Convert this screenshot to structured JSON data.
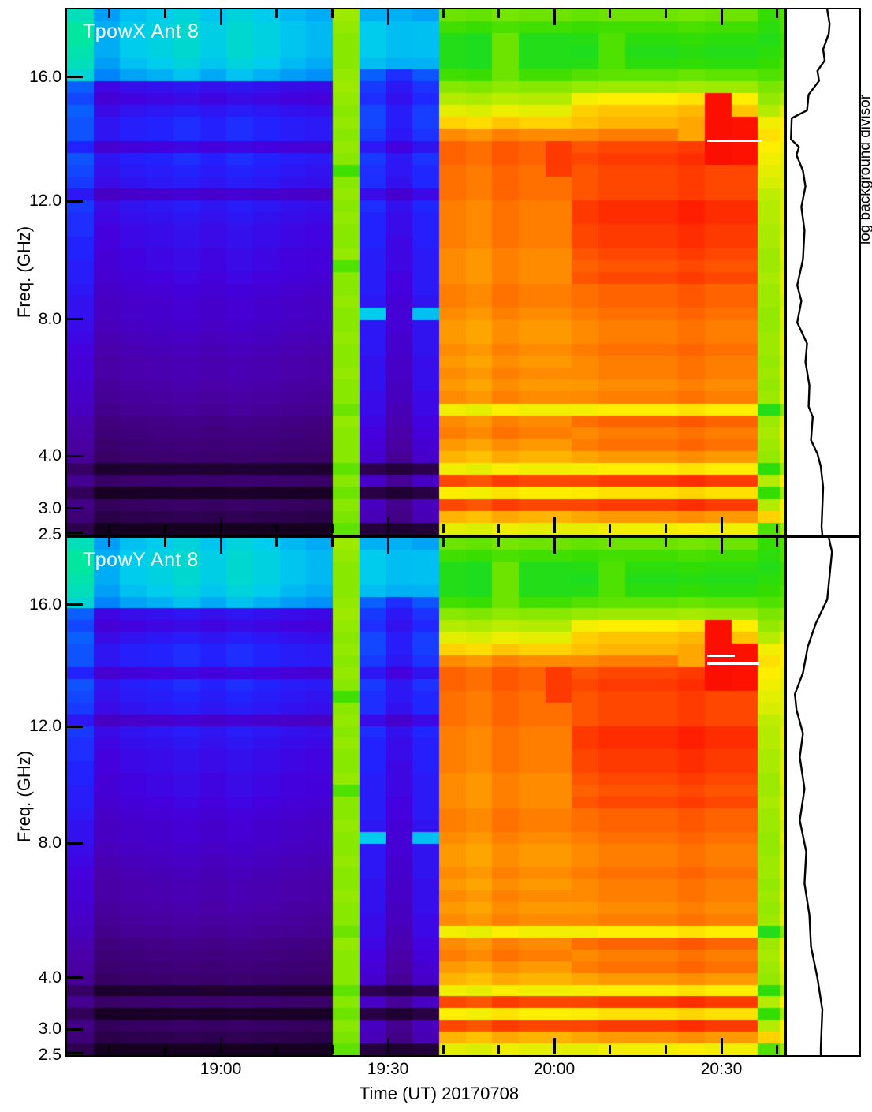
{
  "chart_data": {
    "type": "heatmap",
    "description": "Dynamic radio spectrogram, total power vs time and frequency, two polarizations, with background-divisor spectrum side panels",
    "shared": {
      "x_title": "Time (UT) 20170708",
      "x_start": "18:32",
      "x_end": "20:41",
      "x_axis": {
        "major": [
          {
            "label": "19:00",
            "f": 0.2143
          },
          {
            "label": "19:30",
            "f": 0.4473
          },
          {
            "label": "20:00",
            "f": 0.6791
          },
          {
            "label": "20:30",
            "f": 0.9121
          }
        ],
        "minor_f": [
          0.059,
          0.1363,
          0.2918,
          0.3692,
          0.5242,
          0.6017,
          0.7566,
          0.8341,
          0.9896
        ]
      },
      "y_title": "Freq. (GHz)",
      "y_axis": {
        "ticks": [
          {
            "label": "16.0",
            "f": 0.129
          },
          {
            "label": "12.0",
            "f": 0.365
          },
          {
            "label": "8.0",
            "f": 0.59
          },
          {
            "label": "4.0",
            "f": 0.85
          },
          {
            "label": "3.0",
            "f": 0.95
          },
          {
            "label": "2.5",
            "f": 1.0
          }
        ],
        "range_ghz": [
          2.5,
          18.0
        ]
      },
      "right_panel_label": "log background divisor",
      "colormap_stops": [
        [
          0.0,
          "#000000"
        ],
        [
          0.06,
          "#1a0028"
        ],
        [
          0.13,
          "#3c006e"
        ],
        [
          0.2,
          "#4a00a8"
        ],
        [
          0.27,
          "#4400dd"
        ],
        [
          0.33,
          "#2222ff"
        ],
        [
          0.4,
          "#0077ff"
        ],
        [
          0.46,
          "#00ccee"
        ],
        [
          0.52,
          "#00e8a0"
        ],
        [
          0.58,
          "#00dd44"
        ],
        [
          0.64,
          "#33dd00"
        ],
        [
          0.7,
          "#88e800"
        ],
        [
          0.76,
          "#c8ee00"
        ],
        [
          0.8,
          "#ffee00"
        ],
        [
          0.86,
          "#ff9900"
        ],
        [
          0.91,
          "#ff5500"
        ],
        [
          0.96,
          "#ff1100"
        ],
        [
          1.0,
          "#dd0000"
        ]
      ],
      "n_freq_rows": 44,
      "profiles": {
        "pre": [
          0.46,
          0.47,
          0.47,
          0.47,
          0.46,
          0.44,
          0.3,
          0.28,
          0.31,
          0.33,
          0.33,
          0.27,
          0.33,
          0.32,
          0.31,
          0.25,
          0.31,
          0.3,
          0.29,
          0.29,
          0.28,
          0.28,
          0.27,
          0.26,
          0.25,
          0.25,
          0.24,
          0.23,
          0.22,
          0.21,
          0.21,
          0.2,
          0.19,
          0.18,
          0.16,
          0.15,
          0.14,
          0.13,
          0.07,
          0.13,
          0.06,
          0.12,
          0.1,
          0.05
        ],
        "pre_bright": [
          0.5,
          0.52,
          0.52,
          0.51,
          0.5,
          0.48,
          0.38,
          0.36,
          0.38,
          0.37,
          0.37,
          0.33,
          0.37,
          0.36,
          0.35,
          0.31,
          0.35,
          0.34,
          0.34,
          0.33,
          0.33,
          0.32,
          0.32,
          0.31,
          0.3,
          0.3,
          0.29,
          0.28,
          0.27,
          0.26,
          0.26,
          0.25,
          0.24,
          0.23,
          0.21,
          0.2,
          0.19,
          0.18,
          0.12,
          0.17,
          0.11,
          0.16,
          0.14,
          0.1
        ],
        "cal": [
          0.72,
          0.71,
          0.7,
          0.7,
          0.7,
          0.71,
          0.72,
          0.71,
          0.7,
          0.71,
          0.7,
          0.71,
          0.7,
          0.65,
          0.7,
          0.71,
          0.7,
          0.71,
          0.7,
          0.7,
          0.71,
          0.66,
          0.7,
          0.7,
          0.71,
          0.7,
          0.7,
          0.71,
          0.7,
          0.7,
          0.71,
          0.7,
          0.7,
          0.68,
          0.71,
          0.7,
          0.7,
          0.7,
          0.67,
          0.7,
          0.68,
          0.7,
          0.69,
          0.67
        ],
        "blue": [
          0.44,
          0.46,
          0.46,
          0.46,
          0.45,
          0.38,
          0.35,
          0.34,
          0.36,
          0.36,
          0.35,
          0.31,
          0.35,
          0.34,
          0.34,
          0.29,
          0.34,
          0.33,
          0.33,
          0.33,
          0.32,
          0.32,
          0.32,
          0.32,
          0.31,
          0.46,
          0.31,
          0.31,
          0.31,
          0.3,
          0.3,
          0.3,
          0.29,
          0.29,
          0.28,
          0.27,
          0.26,
          0.25,
          0.1,
          0.24,
          0.09,
          0.23,
          0.22,
          0.08
        ],
        "dark": [
          0.44,
          0.45,
          0.45,
          0.45,
          0.44,
          0.34,
          0.31,
          0.3,
          0.32,
          0.32,
          0.31,
          0.27,
          0.31,
          0.31,
          0.3,
          0.25,
          0.3,
          0.29,
          0.29,
          0.28,
          0.28,
          0.28,
          0.27,
          0.27,
          0.26,
          0.26,
          0.26,
          0.25,
          0.25,
          0.24,
          0.24,
          0.23,
          0.23,
          0.22,
          0.21,
          0.2,
          0.19,
          0.18,
          0.08,
          0.18,
          0.07,
          0.17,
          0.16,
          0.07
        ],
        "flare": [
          0.68,
          0.65,
          0.62,
          0.62,
          0.62,
          0.65,
          0.7,
          0.74,
          0.78,
          0.82,
          0.87,
          0.9,
          0.9,
          0.89,
          0.89,
          0.89,
          0.88,
          0.88,
          0.88,
          0.88,
          0.87,
          0.87,
          0.87,
          0.88,
          0.88,
          0.87,
          0.86,
          0.86,
          0.87,
          0.86,
          0.87,
          0.86,
          0.87,
          0.79,
          0.87,
          0.88,
          0.86,
          0.84,
          0.79,
          0.92,
          0.8,
          0.92,
          0.84,
          0.78
        ],
        "flare_late": [
          0.68,
          0.65,
          0.63,
          0.62,
          0.63,
          0.67,
          0.72,
          0.8,
          0.83,
          0.84,
          0.88,
          0.92,
          0.93,
          0.92,
          0.92,
          0.92,
          0.94,
          0.94,
          0.93,
          0.93,
          0.92,
          0.91,
          0.92,
          0.9,
          0.9,
          0.89,
          0.88,
          0.88,
          0.89,
          0.88,
          0.88,
          0.87,
          0.88,
          0.8,
          0.9,
          0.88,
          0.89,
          0.86,
          0.8,
          0.93,
          0.81,
          0.93,
          0.86,
          0.79
        ],
        "edge": [
          0.64,
          0.63,
          0.62,
          0.63,
          0.64,
          0.66,
          0.69,
          0.71,
          0.74,
          0.79,
          0.81,
          0.8,
          0.79,
          0.78,
          0.77,
          0.75,
          0.74,
          0.74,
          0.73,
          0.73,
          0.72,
          0.72,
          0.73,
          0.72,
          0.72,
          0.71,
          0.71,
          0.72,
          0.72,
          0.71,
          0.72,
          0.71,
          0.72,
          0.62,
          0.72,
          0.73,
          0.72,
          0.71,
          0.63,
          0.74,
          0.64,
          0.74,
          0.82,
          0.66
        ],
        "sliver": [
          0.66,
          0.66,
          0.65,
          0.65,
          0.66,
          0.67,
          0.7,
          0.74,
          0.78,
          0.8,
          0.8,
          0.79,
          0.78,
          0.78,
          0.78,
          0.77,
          0.78,
          0.78,
          0.77,
          0.78,
          0.78,
          0.77,
          0.78,
          0.78,
          0.77,
          0.78,
          0.77,
          0.78,
          0.78,
          0.77,
          0.78,
          0.77,
          0.78,
          0.7,
          0.78,
          0.79,
          0.78,
          0.77,
          0.72,
          0.8,
          0.73,
          0.8,
          0.79,
          0.72
        ]
      },
      "columns": [
        {
          "p": "pre_bright",
          "b": 1.0,
          "w": 1
        },
        {
          "p": "pre",
          "b": 0.93,
          "w": 1
        },
        {
          "p": "pre",
          "b": 0.98,
          "w": 1
        },
        {
          "p": "pre",
          "b": 1.0,
          "w": 1
        },
        {
          "p": "pre",
          "b": 1.03,
          "w": 1
        },
        {
          "p": "pre",
          "b": 0.99,
          "w": 1
        },
        {
          "p": "pre",
          "b": 1.03,
          "w": 1
        },
        {
          "p": "pre",
          "b": 1.0,
          "w": 1
        },
        {
          "p": "pre",
          "b": 0.97,
          "w": 1
        },
        {
          "p": "pre",
          "b": 0.95,
          "w": 1
        },
        {
          "p": "cal",
          "b": 1.0,
          "w": 1
        },
        {
          "p": "blue",
          "b": 1.0,
          "w": 1
        },
        {
          "p": "dark",
          "b": 1.0,
          "w": 1
        },
        {
          "p": "blue",
          "b": 0.98,
          "w": 1
        },
        {
          "p": "flare",
          "b": 1.0,
          "w": 1
        },
        {
          "p": "flare",
          "b": 0.99,
          "w": 1
        },
        {
          "p": "flare",
          "b": 1.01,
          "w": 1,
          "ov": [
            [
              2,
              5,
              0.68
            ]
          ]
        },
        {
          "p": "flare",
          "b": 1.0,
          "w": 1
        },
        {
          "p": "flare",
          "b": 1.0,
          "w": 1,
          "ov": [
            [
              11,
              13,
              0.93
            ]
          ]
        },
        {
          "p": "flare_late",
          "b": 0.99,
          "w": 1
        },
        {
          "p": "flare_late",
          "b": 1.0,
          "w": 1,
          "ov": [
            [
              2,
              4,
              0.66
            ]
          ]
        },
        {
          "p": "flare_late",
          "b": 1.0,
          "w": 1
        },
        {
          "p": "flare_late",
          "b": 1.0,
          "w": 1
        },
        {
          "p": "flare_late",
          "b": 1.01,
          "w": 1,
          "ov": [
            [
              9,
              10,
              0.85
            ]
          ]
        },
        {
          "p": "flare_late",
          "b": 1.0,
          "w": 1,
          "ov": [
            [
              7,
              12,
              0.965
            ]
          ]
        },
        {
          "p": "flare_late",
          "b": 1.0,
          "w": 1,
          "ov": [
            [
              9,
              12,
              0.96
            ]
          ]
        },
        {
          "p": "edge",
          "b": 1.0,
          "w": 0.82
        },
        {
          "p": "sliver",
          "b": 1.0,
          "w": 0.18
        }
      ]
    },
    "panels": [
      {
        "label": "TpowX Ant 8",
        "white_lines": [
          {
            "y": 0.248,
            "x1": 0.892,
            "x2": 0.969
          }
        ],
        "divisor_curve": [
          [
            0,
            0.556
          ],
          [
            0.027,
            0.589
          ],
          [
            0.046,
            0.578
          ],
          [
            0.076,
            0.5
          ],
          [
            0.097,
            0.522
          ],
          [
            0.117,
            0.422
          ],
          [
            0.136,
            0.444
          ],
          [
            0.162,
            0.3
          ],
          [
            0.192,
            0.278
          ],
          [
            0.207,
            0.067
          ],
          [
            0.247,
            0.056
          ],
          [
            0.262,
            0.167
          ],
          [
            0.277,
            0.133
          ],
          [
            0.307,
            0.222
          ],
          [
            0.337,
            0.256
          ],
          [
            0.376,
            0.2
          ],
          [
            0.421,
            0.244
          ],
          [
            0.476,
            0.222
          ],
          [
            0.525,
            0.144
          ],
          [
            0.555,
            0.2
          ],
          [
            0.596,
            0.144
          ],
          [
            0.636,
            0.278
          ],
          [
            0.671,
            0.256
          ],
          [
            0.716,
            0.311
          ],
          [
            0.756,
            0.3
          ],
          [
            0.776,
            0.356
          ],
          [
            0.82,
            0.333
          ],
          [
            0.846,
            0.422
          ],
          [
            0.87,
            0.467
          ],
          [
            0.91,
            0.5
          ],
          [
            0.985,
            0.478
          ],
          [
            1.0,
            0.489
          ]
        ]
      },
      {
        "label": "TpowY Ant 8",
        "white_lines": [
          {
            "y": 0.226,
            "x1": 0.892,
            "x2": 0.931
          },
          {
            "y": 0.241,
            "x1": 0.892,
            "x2": 0.965
          }
        ],
        "divisor_curve": [
          [
            0,
            0.578
          ],
          [
            0.027,
            0.622
          ],
          [
            0.073,
            0.589
          ],
          [
            0.119,
            0.556
          ],
          [
            0.165,
            0.4
          ],
          [
            0.21,
            0.289
          ],
          [
            0.261,
            0.222
          ],
          [
            0.302,
            0.111
          ],
          [
            0.332,
            0.133
          ],
          [
            0.378,
            0.222
          ],
          [
            0.424,
            0.178
          ],
          [
            0.485,
            0.244
          ],
          [
            0.546,
            0.178
          ],
          [
            0.607,
            0.267
          ],
          [
            0.668,
            0.244
          ],
          [
            0.729,
            0.311
          ],
          [
            0.79,
            0.333
          ],
          [
            0.851,
            0.422
          ],
          [
            0.912,
            0.489
          ],
          [
            0.988,
            0.467
          ],
          [
            1.0,
            0.467
          ]
        ]
      }
    ]
  }
}
